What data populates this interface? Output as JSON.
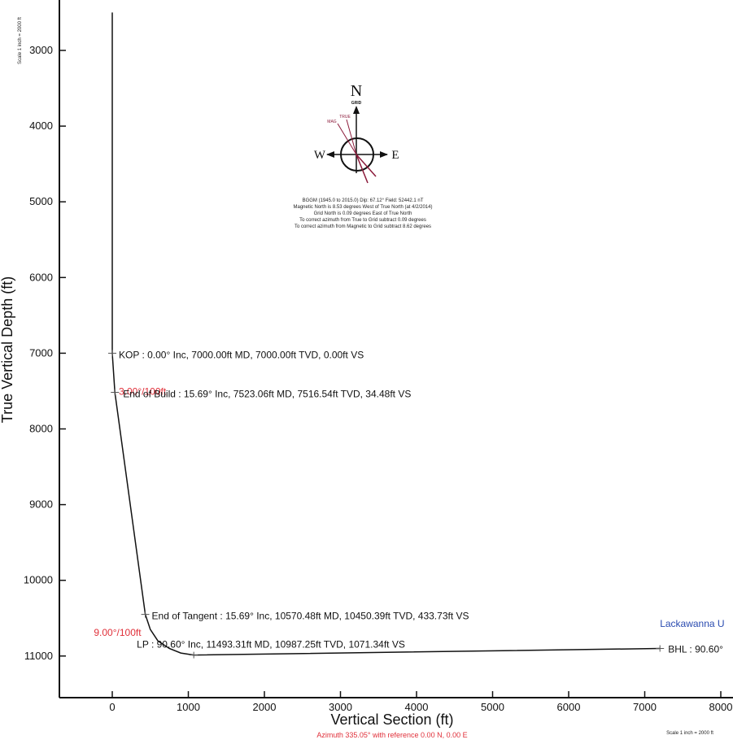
{
  "chart_data": {
    "type": "line",
    "xlabel": "Vertical Section (ft)",
    "ylabel": "True Vertical Depth (ft)",
    "xlim": [
      -700,
      8000
    ],
    "ylim": [
      2500,
      11600
    ],
    "y_inverted": true,
    "x_ticks": [
      "0",
      "1000",
      "2000",
      "3000",
      "4000",
      "5000",
      "6000",
      "7000",
      "8000"
    ],
    "y_ticks": [
      "3000",
      "4000",
      "5000",
      "6000",
      "7000",
      "8000",
      "9000",
      "10000",
      "11000"
    ],
    "azimuth_note": "Azimuth 335.05° with reference 0.00 N, 0.00 E",
    "scale_note_left": "Scale 1 inch = 2000 ft",
    "scale_note_bottom": "Scale 1 inch = 2000 ft",
    "series": [
      {
        "x": [
          0,
          0,
          34.48,
          433.73,
          500,
          600,
          750,
          900,
          1071.34,
          7200
        ],
        "y": [
          2500,
          7000,
          7516.54,
          10450.39,
          10650,
          10800,
          10900,
          10960,
          10987.25,
          10900
        ]
      }
    ],
    "annotations": [
      {
        "text": "KOP : 0.00° Inc, 7000.00ft MD, 7000.00ft TVD, 0.00ft VS",
        "x": 0,
        "y": 7000,
        "color": "#111111"
      },
      {
        "text": "3.00°/100ft",
        "x": 0,
        "y": 7250,
        "color": "#e0303a"
      },
      {
        "text": "End of Build : 15.69° Inc, 7523.06ft MD, 7516.54ft TVD, 34.48ft VS",
        "x": 34.48,
        "y": 7516.54,
        "color": "#111111"
      },
      {
        "text": "End of Tangent : 15.69° Inc, 10570.48ft MD, 10450.39ft TVD, 433.73ft VS",
        "x": 433.73,
        "y": 10450.39,
        "color": "#111111"
      },
      {
        "text": "9.00°/100ft",
        "x": 433.73,
        "y": 10650,
        "color": "#e0303a"
      },
      {
        "text": "LP : 90.60° Inc, 11493.31ft MD, 10987.25ft TVD, 1071.34ft VS",
        "x": 1071.34,
        "y": 10987.25,
        "color": "#111111"
      },
      {
        "text": "Lackawanna U",
        "x": 7200,
        "y": 10700,
        "color": "#2a4bb0"
      },
      {
        "text": "BHL : 90.60°",
        "x": 7200,
        "y": 10900,
        "color": "#111111"
      }
    ],
    "compass": {
      "north_label": "N",
      "grid_label": "GRID",
      "west_label": "W",
      "east_label": "E",
      "true_label": "TRUE",
      "mag_label": "MAG",
      "notes": [
        "BGGM (1945.0 to 2015.0) Dip: 67.12°  Field: 52442.1 nT",
        "Magnetic North is 8.53 degrees West of True North (at 4/2/2014)",
        "Grid North is 0.09 degrees East of True North",
        "To correct azimuth from True to Grid subtract 0.09 degrees",
        "To correct azimuth from Magnetic to Grid subtract 8.62 degrees"
      ]
    },
    "colors": {
      "line": "#111111",
      "rate": "#e0303a",
      "target": "#2a4bb0",
      "azimuth": "#e0303a"
    }
  }
}
